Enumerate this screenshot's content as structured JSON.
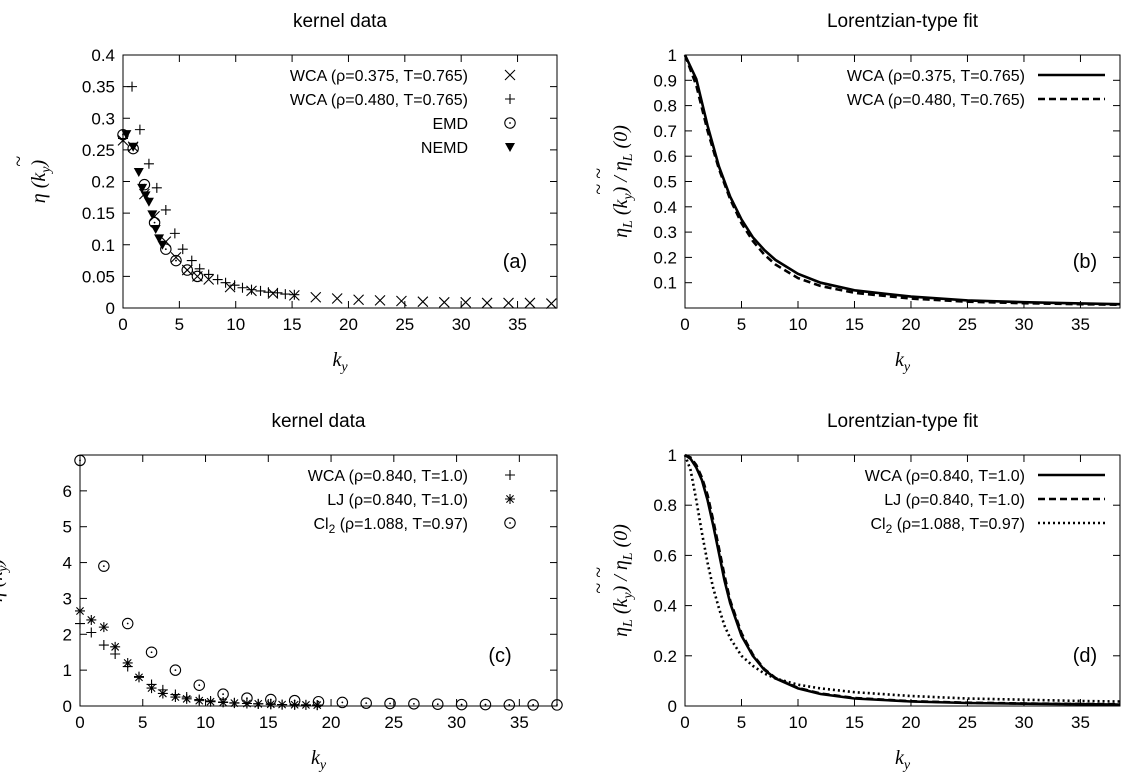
{
  "chart_data": [
    {
      "type": "scatter",
      "title": "kernel data",
      "xlabel": "k_y",
      "ylabel": "~η (k_y)",
      "xlim": [
        0,
        38.5
      ],
      "ylim": [
        0,
        0.4
      ],
      "xticks": [
        "0",
        "5",
        "10",
        "15",
        "20",
        "25",
        "30",
        "35"
      ],
      "yticks": [
        "0",
        "0.05",
        "0.1",
        "0.15",
        "0.2",
        "0.25",
        "0.3",
        "0.35",
        "0.4"
      ],
      "panel_label": "(a)",
      "legend_position": "top-right",
      "series": [
        {
          "name": "WCA (ρ=0.375, T=0.765)",
          "marker": "x",
          "x": [
            0,
            0.9,
            1.9,
            2.8,
            3.8,
            4.7,
            5.7,
            6.6,
            7.6,
            9.5,
            11.4,
            13.3,
            15.2,
            17.1,
            19.0,
            20.9,
            22.8,
            24.7,
            26.6,
            28.5,
            30.4,
            32.3,
            34.2,
            36.1,
            38.0
          ],
          "y": [
            0.265,
            0.255,
            0.18,
            0.145,
            0.105,
            0.08,
            0.06,
            0.05,
            0.045,
            0.033,
            0.027,
            0.023,
            0.02,
            0.017,
            0.015,
            0.013,
            0.012,
            0.011,
            0.01,
            0.009,
            0.009,
            0.008,
            0.008,
            0.008,
            0.007
          ]
        },
        {
          "name": "WCA (ρ=0.480, T=0.765)",
          "marker": "+",
          "x": [
            0,
            0.8,
            1.5,
            2.3,
            3.0,
            3.8,
            4.6,
            5.3,
            6.1,
            6.8,
            7.6,
            8.4,
            9.1,
            9.9,
            10.6,
            11.4,
            12.2,
            12.9,
            13.7,
            14.4,
            15.2
          ],
          "y": [
            0.268,
            0.35,
            0.282,
            0.228,
            0.19,
            0.155,
            0.118,
            0.093,
            0.075,
            0.062,
            0.053,
            0.045,
            0.04,
            0.036,
            0.032,
            0.029,
            0.027,
            0.025,
            0.024,
            0.022,
            0.021
          ]
        },
        {
          "name": "EMD",
          "marker": "circle",
          "x": [
            0,
            0.9,
            1.9,
            2.8,
            3.8,
            4.7,
            5.7,
            6.6
          ],
          "y": [
            0.274,
            0.252,
            0.195,
            0.135,
            0.093,
            0.075,
            0.06,
            0.05
          ]
        },
        {
          "name": "NEMD",
          "marker": "triangle-down",
          "x": [
            0.3,
            0.9,
            1.4,
            1.7,
            2.0,
            2.3,
            2.6,
            2.9,
            3.2,
            3.5
          ],
          "y": [
            0.275,
            0.255,
            0.215,
            0.19,
            0.178,
            0.168,
            0.148,
            0.125,
            0.11,
            0.1
          ]
        }
      ]
    },
    {
      "type": "line",
      "title": "Lorentzian-type fit",
      "xlabel": "k_y",
      "ylabel": "~η_L (k_y) / ~η_L (0)",
      "xlim": [
        0,
        38.5
      ],
      "ylim": [
        0,
        1
      ],
      "xticks": [
        "0",
        "5",
        "10",
        "15",
        "20",
        "25",
        "30",
        "35"
      ],
      "yticks": [
        "0.1",
        "0.2",
        "0.3",
        "0.4",
        "0.5",
        "0.6",
        "0.7",
        "0.8",
        "0.9",
        "1"
      ],
      "panel_label": "(b)",
      "legend_position": "top-right",
      "series": [
        {
          "name": "WCA (ρ=0.375, T=0.765)",
          "style": "solid",
          "x": [
            0,
            1,
            2,
            3,
            4,
            5,
            6,
            7,
            8,
            10,
            12,
            15,
            20,
            25,
            30,
            35,
            38.5
          ],
          "y": [
            1.0,
            0.905,
            0.72,
            0.56,
            0.44,
            0.35,
            0.28,
            0.23,
            0.19,
            0.135,
            0.1,
            0.07,
            0.045,
            0.03,
            0.023,
            0.018,
            0.015
          ]
        },
        {
          "name": "WCA (ρ=0.480, T=0.765)",
          "style": "dashed",
          "x": [
            0,
            1,
            2,
            3,
            4,
            5,
            6,
            7,
            8,
            10,
            12,
            15,
            20,
            25,
            30,
            35,
            38.5
          ],
          "y": [
            1.0,
            0.88,
            0.7,
            0.55,
            0.43,
            0.335,
            0.265,
            0.212,
            0.172,
            0.118,
            0.087,
            0.06,
            0.037,
            0.025,
            0.019,
            0.015,
            0.013
          ]
        }
      ]
    },
    {
      "type": "scatter",
      "title": "kernel data",
      "xlabel": "k_y",
      "ylabel": "~η (k_y)",
      "xlim": [
        0,
        38
      ],
      "ylim": [
        0,
        7
      ],
      "xticks": [
        "0",
        "5",
        "10",
        "15",
        "20",
        "25",
        "30",
        "35"
      ],
      "yticks": [
        "0",
        "1",
        "2",
        "3",
        "4",
        "5",
        "6"
      ],
      "panel_label": "(c)",
      "legend_position": "top-right",
      "series": [
        {
          "name": "WCA (ρ=0.840, T=1.0)",
          "marker": "+",
          "x": [
            0,
            0.9,
            1.9,
            2.8,
            3.8,
            4.7,
            5.7,
            6.6,
            7.6,
            8.5,
            9.5,
            10.4,
            11.4,
            12.3,
            13.3,
            14.2,
            15.2,
            16.1,
            17.1,
            18.0,
            18.9
          ],
          "y": [
            2.3,
            2.05,
            1.7,
            1.45,
            1.1,
            0.82,
            0.6,
            0.45,
            0.32,
            0.25,
            0.18,
            0.14,
            0.11,
            0.09,
            0.07,
            0.06,
            0.05,
            0.04,
            0.035,
            0.03,
            0.025
          ]
        },
        {
          "name": "LJ (ρ=0.840, T=1.0)",
          "marker": "asterisk",
          "x": [
            0,
            0.9,
            1.9,
            2.8,
            3.8,
            4.7,
            5.7,
            6.6,
            7.6,
            8.5,
            9.5,
            10.4,
            11.4,
            12.3,
            13.3,
            14.2,
            15.2,
            16.1,
            17.1,
            18.0,
            18.9
          ],
          "y": [
            2.65,
            2.4,
            2.2,
            1.65,
            1.2,
            0.8,
            0.5,
            0.35,
            0.25,
            0.2,
            0.15,
            0.12,
            0.1,
            0.08,
            0.07,
            0.06,
            0.05,
            0.04,
            0.035,
            0.03,
            0.025
          ]
        },
        {
          "name": "Cl₂ (ρ=1.088, T=0.97)",
          "marker": "circle",
          "x": [
            0,
            1.9,
            3.8,
            5.7,
            7.6,
            9.5,
            11.4,
            13.3,
            15.2,
            17.1,
            19.0,
            20.9,
            22.8,
            24.7,
            26.6,
            28.5,
            30.4,
            32.3,
            34.2,
            36.1,
            38.0
          ],
          "y": [
            6.85,
            3.9,
            2.3,
            1.5,
            1.0,
            0.58,
            0.33,
            0.22,
            0.18,
            0.15,
            0.12,
            0.1,
            0.08,
            0.07,
            0.06,
            0.05,
            0.04,
            0.04,
            0.03,
            0.03,
            0.03
          ]
        }
      ]
    },
    {
      "type": "line",
      "title": "Lorentzian-type fit",
      "xlabel": "k_y",
      "ylabel": "~η_L (k_y) / ~η_L (0)",
      "xlim": [
        0,
        38.5
      ],
      "ylim": [
        0,
        1
      ],
      "xticks": [
        "0",
        "5",
        "10",
        "15",
        "20",
        "25",
        "30",
        "35"
      ],
      "yticks": [
        "0",
        "0.2",
        "0.4",
        "0.6",
        "0.8",
        "1"
      ],
      "panel_label": "(d)",
      "legend_position": "top-right",
      "series": [
        {
          "name": "WCA (ρ=0.840, T=1.0)",
          "style": "solid",
          "x": [
            0,
            0.5,
            1,
            1.5,
            2,
            2.5,
            3,
            3.5,
            4,
            5,
            6,
            7,
            8,
            10,
            12,
            15,
            20,
            25,
            30,
            35,
            38.5
          ],
          "y": [
            1.0,
            0.985,
            0.95,
            0.9,
            0.82,
            0.72,
            0.61,
            0.5,
            0.41,
            0.28,
            0.2,
            0.145,
            0.11,
            0.07,
            0.048,
            0.03,
            0.018,
            0.012,
            0.009,
            0.007,
            0.006
          ]
        },
        {
          "name": "LJ (ρ=0.840, T=1.0)",
          "style": "dashed",
          "x": [
            0,
            0.5,
            1,
            1.5,
            2,
            2.5,
            3,
            3.5,
            4,
            5,
            6,
            7,
            8,
            10,
            12,
            15,
            20,
            25,
            30,
            35,
            38.5
          ],
          "y": [
            1.0,
            0.99,
            0.96,
            0.91,
            0.84,
            0.74,
            0.63,
            0.52,
            0.42,
            0.29,
            0.205,
            0.148,
            0.112,
            0.072,
            0.05,
            0.032,
            0.019,
            0.013,
            0.01,
            0.008,
            0.007
          ]
        },
        {
          "name": "Cl₂ (ρ=1.088, T=0.97)",
          "style": "dotted",
          "x": [
            0,
            0.5,
            1,
            1.5,
            2,
            2.5,
            3,
            3.5,
            4,
            5,
            6,
            7,
            8,
            10,
            12,
            15,
            20,
            25,
            30,
            35,
            38.5
          ],
          "y": [
            1.0,
            0.94,
            0.82,
            0.69,
            0.57,
            0.47,
            0.39,
            0.32,
            0.27,
            0.2,
            0.16,
            0.13,
            0.11,
            0.085,
            0.07,
            0.055,
            0.04,
            0.03,
            0.025,
            0.02,
            0.018
          ]
        }
      ]
    }
  ]
}
